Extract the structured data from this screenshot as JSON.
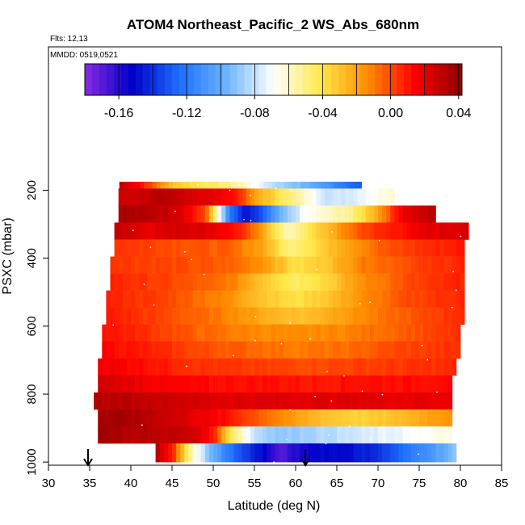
{
  "chart_data": {
    "type": "heatmap",
    "title": "ATOM4 Northeast_Pacific_2 WS_Abs_680nm",
    "flights_label": "Flts: 12,13",
    "dates_label": "MMDD: 0519,0521",
    "xlabel": "Latitude (deg N)",
    "ylabel": "PSXC (mbar)",
    "xlim": [
      30,
      85
    ],
    "ylim": [
      1000,
      0
    ],
    "x_ticks": [
      "30",
      "35",
      "40",
      "45",
      "50",
      "55",
      "60",
      "65",
      "70",
      "75",
      "80",
      "85"
    ],
    "y_ticks": [
      "200",
      "400",
      "600",
      "800",
      "1000"
    ],
    "colorbar": {
      "range": [
        -0.18,
        0.042
      ],
      "ticks": [
        "-0.16",
        "-0.12",
        "-0.08",
        "-0.04",
        "0.00",
        "0.04"
      ],
      "colors": [
        "#8a2be2",
        "#0000c8",
        "#1e6eff",
        "#6ab4ff",
        "#ffffff",
        "#ffe84a",
        "#ff8c00",
        "#ff0000",
        "#8b0000"
      ]
    },
    "arrows_latitude": [
      34.8,
      61.2
    ],
    "bands": [
      {
        "p_top": 175,
        "p_bot": 195,
        "lat_min": 38.6,
        "lat_max": 68.0,
        "values": [
          [
            38.6,
            0.03
          ],
          [
            41,
            0.015
          ],
          [
            45,
            -0.03
          ],
          [
            48,
            -0.04
          ],
          [
            52,
            -0.05
          ],
          [
            57,
            -0.08
          ],
          [
            62,
            -0.1
          ],
          [
            66,
            -0.12
          ],
          [
            68,
            -0.13
          ]
        ]
      },
      {
        "p_top": 195,
        "p_bot": 245,
        "lat_min": 38.5,
        "lat_max": 72.0,
        "values": [
          [
            38.5,
            0.025
          ],
          [
            44,
            0.03
          ],
          [
            50,
            0.02
          ],
          [
            53,
            0.01
          ],
          [
            55,
            -0.02
          ],
          [
            58,
            -0.04
          ],
          [
            61,
            -0.06
          ],
          [
            64,
            -0.08
          ],
          [
            67,
            -0.075
          ],
          [
            72,
            -0.06
          ]
        ]
      },
      {
        "p_top": 245,
        "p_bot": 295,
        "lat_min": 38.5,
        "lat_max": 77.0,
        "values": [
          [
            38.5,
            0.035
          ],
          [
            43,
            0.03
          ],
          [
            46,
            0.025
          ],
          [
            49,
            0.0
          ],
          [
            50.5,
            -0.06
          ],
          [
            52,
            -0.12
          ],
          [
            54,
            -0.15
          ],
          [
            56,
            -0.13
          ],
          [
            58,
            -0.1
          ],
          [
            61,
            -0.07
          ],
          [
            64,
            -0.06
          ],
          [
            67,
            -0.05
          ],
          [
            70,
            -0.02
          ],
          [
            73,
            0.02
          ],
          [
            77,
            0.03
          ]
        ]
      },
      {
        "p_top": 295,
        "p_bot": 345,
        "lat_min": 38.0,
        "lat_max": 81.0,
        "values": [
          [
            38,
            0.03
          ],
          [
            42,
            0.02
          ],
          [
            46,
            0.025
          ],
          [
            50,
            0.02
          ],
          [
            53,
            0.01
          ],
          [
            56,
            -0.02
          ],
          [
            59,
            -0.06
          ],
          [
            62,
            -0.04
          ],
          [
            65,
            -0.02
          ],
          [
            68,
            0.0
          ],
          [
            72,
            0.01
          ],
          [
            76,
            0.02
          ],
          [
            81,
            0.025
          ]
        ]
      },
      {
        "p_top": 345,
        "p_bot": 395,
        "lat_min": 38.0,
        "lat_max": 80.5,
        "values": [
          [
            38,
            0.005
          ],
          [
            45,
            0.0
          ],
          [
            52,
            -0.005
          ],
          [
            56,
            -0.02
          ],
          [
            59,
            -0.05
          ],
          [
            62,
            -0.04
          ],
          [
            66,
            -0.02
          ],
          [
            70,
            -0.005
          ],
          [
            75,
            0.005
          ],
          [
            80.5,
            0.01
          ]
        ]
      },
      {
        "p_top": 395,
        "p_bot": 445,
        "lat_min": 37.5,
        "lat_max": 80.5,
        "values": [
          [
            37.5,
            0.005
          ],
          [
            45,
            0.0
          ],
          [
            52,
            -0.005
          ],
          [
            56,
            -0.015
          ],
          [
            60,
            -0.04
          ],
          [
            64,
            -0.03
          ],
          [
            68,
            -0.01
          ],
          [
            74,
            0.0
          ],
          [
            80.5,
            0.008
          ]
        ]
      },
      {
        "p_top": 445,
        "p_bot": 495,
        "lat_min": 37.5,
        "lat_max": 80.5,
        "values": [
          [
            37.5,
            0.008
          ],
          [
            45,
            0.0
          ],
          [
            52,
            -0.01
          ],
          [
            56,
            -0.03
          ],
          [
            60,
            -0.045
          ],
          [
            64,
            -0.035
          ],
          [
            68,
            -0.015
          ],
          [
            74,
            0.0
          ],
          [
            80.5,
            0.008
          ]
        ]
      },
      {
        "p_top": 495,
        "p_bot": 545,
        "lat_min": 37.0,
        "lat_max": 80.5,
        "values": [
          [
            37,
            0.008
          ],
          [
            45,
            0.0
          ],
          [
            52,
            -0.015
          ],
          [
            56,
            -0.03
          ],
          [
            60,
            -0.04
          ],
          [
            64,
            -0.03
          ],
          [
            68,
            -0.015
          ],
          [
            74,
            0.0
          ],
          [
            80.5,
            0.008
          ]
        ]
      },
      {
        "p_top": 545,
        "p_bot": 595,
        "lat_min": 37.0,
        "lat_max": 80.5,
        "values": [
          [
            37,
            0.01
          ],
          [
            44,
            0.0
          ],
          [
            52,
            -0.012
          ],
          [
            57,
            -0.025
          ],
          [
            61,
            -0.03
          ],
          [
            65,
            -0.02
          ],
          [
            70,
            -0.01
          ],
          [
            76,
            0.0
          ],
          [
            80.5,
            0.008
          ]
        ]
      },
      {
        "p_top": 595,
        "p_bot": 645,
        "lat_min": 36.5,
        "lat_max": 80.0,
        "values": [
          [
            36.5,
            0.012
          ],
          [
            42,
            0.005
          ],
          [
            48,
            -0.005
          ],
          [
            54,
            -0.012
          ],
          [
            60,
            -0.015
          ],
          [
            66,
            -0.012
          ],
          [
            72,
            -0.005
          ],
          [
            80,
            0.005
          ]
        ]
      },
      {
        "p_top": 645,
        "p_bot": 695,
        "lat_min": 36.5,
        "lat_max": 80.0,
        "values": [
          [
            36.5,
            0.015
          ],
          [
            42,
            0.008
          ],
          [
            48,
            0.0
          ],
          [
            54,
            -0.005
          ],
          [
            60,
            -0.01
          ],
          [
            66,
            -0.008
          ],
          [
            72,
            0.0
          ],
          [
            80,
            0.005
          ]
        ]
      },
      {
        "p_top": 695,
        "p_bot": 745,
        "lat_min": 36.0,
        "lat_max": 79.5,
        "values": [
          [
            36,
            0.018
          ],
          [
            42,
            0.012
          ],
          [
            48,
            0.005
          ],
          [
            55,
            0.002
          ],
          [
            62,
            0.0
          ],
          [
            68,
            0.002
          ],
          [
            74,
            0.004
          ],
          [
            79.5,
            0.006
          ]
        ]
      },
      {
        "p_top": 745,
        "p_bot": 795,
        "lat_min": 36.0,
        "lat_max": 79.0,
        "values": [
          [
            36,
            0.025
          ],
          [
            40,
            0.02
          ],
          [
            44,
            0.015
          ],
          [
            50,
            0.012
          ],
          [
            56,
            0.012
          ],
          [
            62,
            0.01
          ],
          [
            68,
            0.012
          ],
          [
            74,
            0.012
          ],
          [
            79,
            0.014
          ]
        ]
      },
      {
        "p_top": 795,
        "p_bot": 845,
        "lat_min": 35.5,
        "lat_max": 79.0,
        "values": [
          [
            35.5,
            0.032
          ],
          [
            40,
            0.03
          ],
          [
            45,
            0.027
          ],
          [
            50,
            0.022
          ],
          [
            56,
            0.022
          ],
          [
            62,
            0.022
          ],
          [
            68,
            0.022
          ],
          [
            74,
            0.02
          ],
          [
            79,
            0.02
          ]
        ]
      },
      {
        "p_top": 845,
        "p_bot": 895,
        "lat_min": 36.0,
        "lat_max": 79.0,
        "values": [
          [
            36,
            0.036
          ],
          [
            40,
            0.034
          ],
          [
            44,
            0.028
          ],
          [
            48,
            0.02
          ],
          [
            52,
            0.01
          ],
          [
            56,
            -0.005
          ],
          [
            60,
            -0.02
          ],
          [
            64,
            -0.03
          ],
          [
            68,
            -0.035
          ],
          [
            72,
            -0.03
          ],
          [
            76,
            -0.02
          ],
          [
            79,
            -0.015
          ]
        ]
      },
      {
        "p_top": 895,
        "p_bot": 945,
        "lat_min": 36.0,
        "lat_max": 79.0,
        "values": [
          [
            36,
            0.038
          ],
          [
            40,
            0.032
          ],
          [
            44,
            0.03
          ],
          [
            48,
            0.025
          ],
          [
            50,
            0.01
          ],
          [
            52,
            -0.04
          ],
          [
            55,
            -0.08
          ],
          [
            58,
            -0.09
          ],
          [
            62,
            -0.085
          ],
          [
            66,
            -0.08
          ],
          [
            70,
            -0.075
          ],
          [
            74,
            -0.07
          ],
          [
            79,
            -0.065
          ]
        ]
      },
      {
        "p_top": 945,
        "p_bot": 1000,
        "lat_min": 43.0,
        "lat_max": 79.5,
        "values": [
          [
            43,
            0.035
          ],
          [
            45,
            0.01
          ],
          [
            47,
            -0.05
          ],
          [
            50,
            -0.1
          ],
          [
            53,
            -0.13
          ],
          [
            56,
            -0.15
          ],
          [
            58,
            -0.17
          ],
          [
            60,
            -0.16
          ],
          [
            63,
            -0.15
          ],
          [
            66,
            -0.15
          ],
          [
            70,
            -0.14
          ],
          [
            74,
            -0.12
          ],
          [
            78,
            -0.1
          ],
          [
            79.5,
            -0.09
          ]
        ]
      }
    ]
  }
}
